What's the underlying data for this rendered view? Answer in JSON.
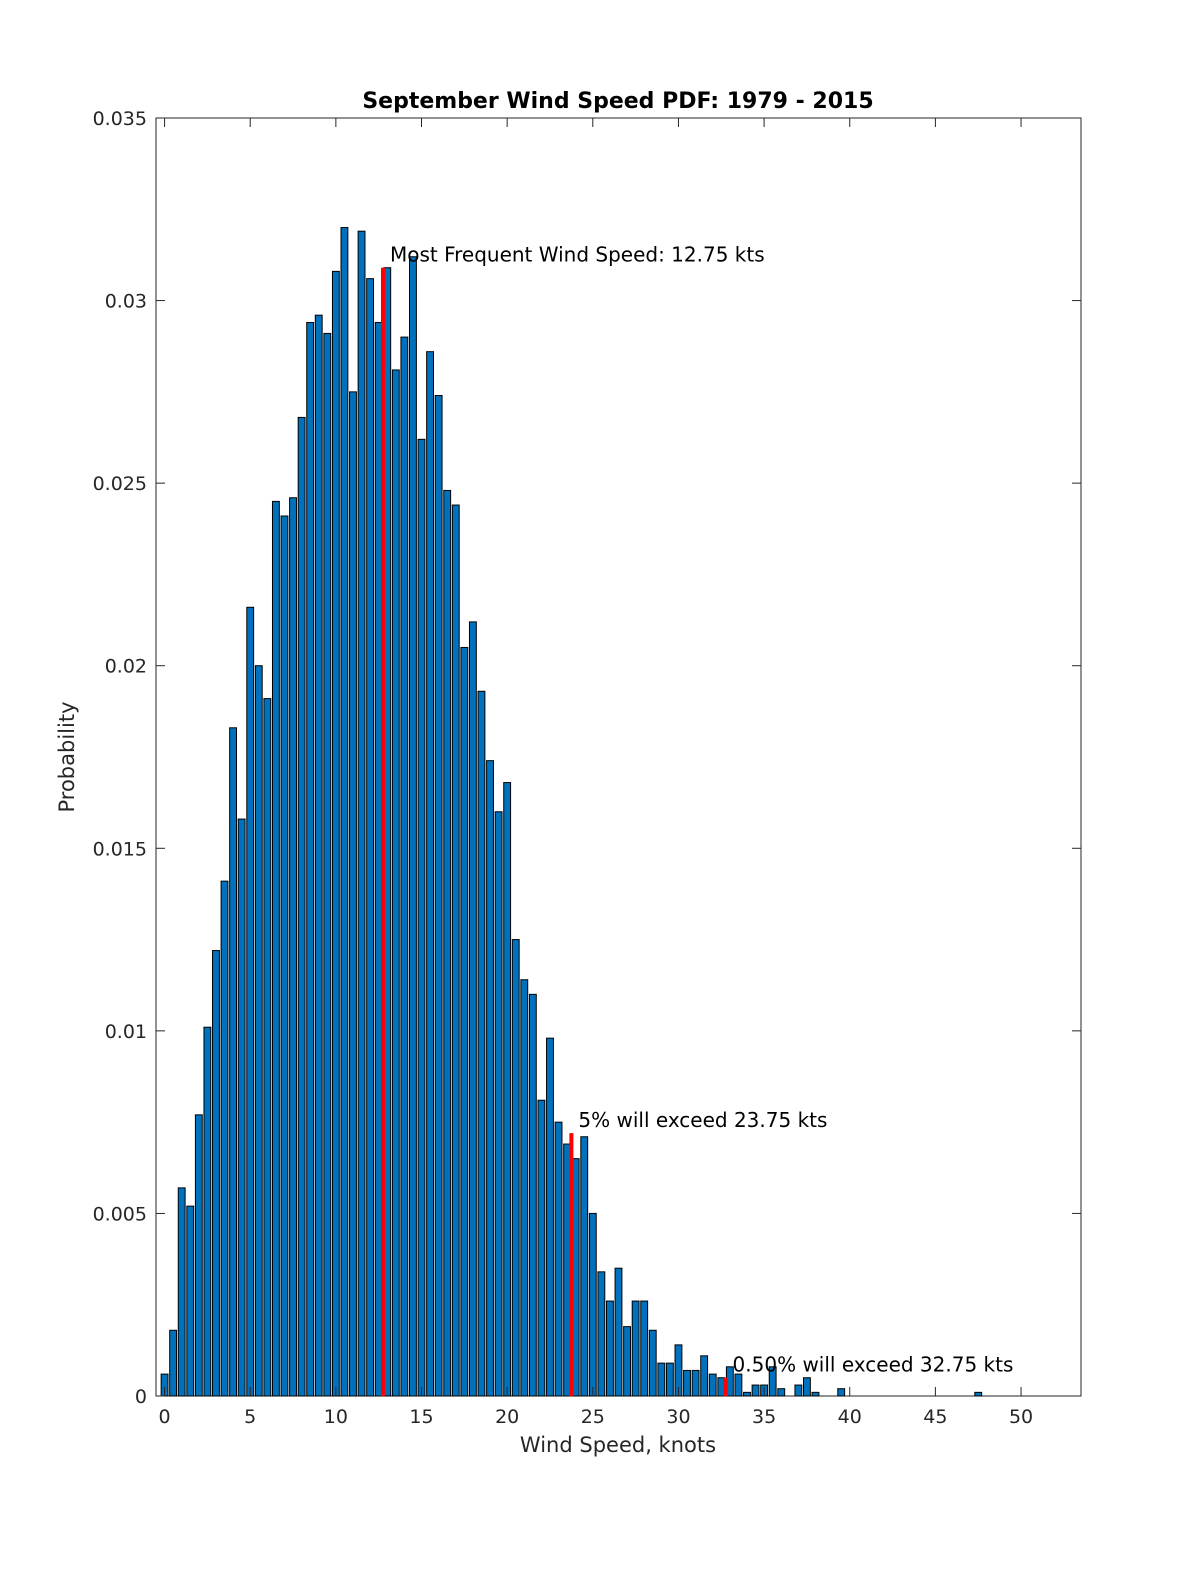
{
  "chart_data": {
    "type": "bar",
    "title": "September Wind Speed PDF: 1979 - 2015",
    "xlabel": "Wind Speed, knots",
    "ylabel": "Probability",
    "xlim": [
      -0.5,
      53.5
    ],
    "ylim": [
      0,
      0.035
    ],
    "xticks": [
      0,
      5,
      10,
      15,
      20,
      25,
      30,
      35,
      40,
      45,
      50
    ],
    "yticks": [
      0,
      0.005,
      0.01,
      0.015,
      0.02,
      0.025,
      0.03,
      0.035
    ],
    "ytick_labels": [
      "0",
      "0.005",
      "0.01",
      "0.015",
      "0.02",
      "0.025",
      "0.03",
      "0.035"
    ],
    "bin_width": 0.5,
    "bar_color": "#0072BD",
    "marker_color": "#FF0000",
    "x": [
      0,
      0.5,
      1,
      1.5,
      2,
      2.5,
      3,
      3.5,
      4,
      4.5,
      5,
      5.5,
      6,
      6.5,
      7,
      7.5,
      8,
      8.5,
      9,
      9.5,
      10,
      10.5,
      11,
      11.5,
      12,
      12.5,
      13,
      13.5,
      14,
      14.5,
      15,
      15.5,
      16,
      16.5,
      17,
      17.5,
      18,
      18.5,
      19,
      19.5,
      20,
      20.5,
      21,
      21.5,
      22,
      22.5,
      23,
      23.5,
      24,
      24.5,
      25,
      25.5,
      26,
      26.5,
      27,
      27.5,
      28,
      28.5,
      29,
      29.5,
      30,
      30.5,
      31,
      31.5,
      32,
      32.5,
      33,
      33.5,
      34,
      34.5,
      35,
      35.5,
      36,
      36.5,
      37,
      37.5,
      38,
      38.5,
      39,
      39.5,
      40,
      40.5,
      41,
      41.5,
      42,
      42.5,
      43,
      43.5,
      44,
      44.5,
      45,
      45.5,
      46,
      46.5,
      47,
      47.5,
      48,
      48.5,
      49,
      49.5,
      50
    ],
    "values": [
      0.0006,
      0.0018,
      0.0057,
      0.0052,
      0.0077,
      0.0101,
      0.0122,
      0.0141,
      0.0183,
      0.0158,
      0.0216,
      0.02,
      0.0191,
      0.0245,
      0.0241,
      0.0246,
      0.0268,
      0.0294,
      0.0296,
      0.0291,
      0.0308,
      0.032,
      0.0275,
      0.0319,
      0.0306,
      0.0294,
      0.0309,
      0.0281,
      0.029,
      0.0312,
      0.0262,
      0.0286,
      0.0274,
      0.0248,
      0.0244,
      0.0205,
      0.0212,
      0.0193,
      0.0174,
      0.016,
      0.0168,
      0.0125,
      0.0114,
      0.011,
      0.0081,
      0.0098,
      0.0075,
      0.0069,
      0.0065,
      0.0071,
      0.005,
      0.0034,
      0.0026,
      0.0035,
      0.0019,
      0.0026,
      0.0026,
      0.0018,
      0.0009,
      0.0009,
      0.0014,
      0.0007,
      0.0007,
      0.0011,
      0.0006,
      0.0005,
      0.0008,
      0.0006,
      0.0001,
      0.0003,
      0.0003,
      0.0008,
      0.0002,
      0.0,
      0.0003,
      0.0005,
      0.0001,
      0.0,
      0.0,
      0.0002,
      0.0,
      0.0,
      0.0,
      0.0,
      0.0,
      0.0,
      0.0,
      0.0,
      0.0,
      0.0,
      0.0,
      0.0,
      0.0,
      0.0,
      0.0,
      0.0001,
      0.0,
      0.0,
      0.0,
      0.0,
      0.0
    ],
    "markers": [
      {
        "x": 12.75,
        "y": 0.0309,
        "label": "Most Frequent Wind Speed: 12.75 kts"
      },
      {
        "x": 23.75,
        "y": 0.0072,
        "label": "5% will exceed 23.75 kts"
      },
      {
        "x": 32.75,
        "y": 0.0005,
        "label": "0.50% will exceed 32.75 kts"
      }
    ]
  }
}
